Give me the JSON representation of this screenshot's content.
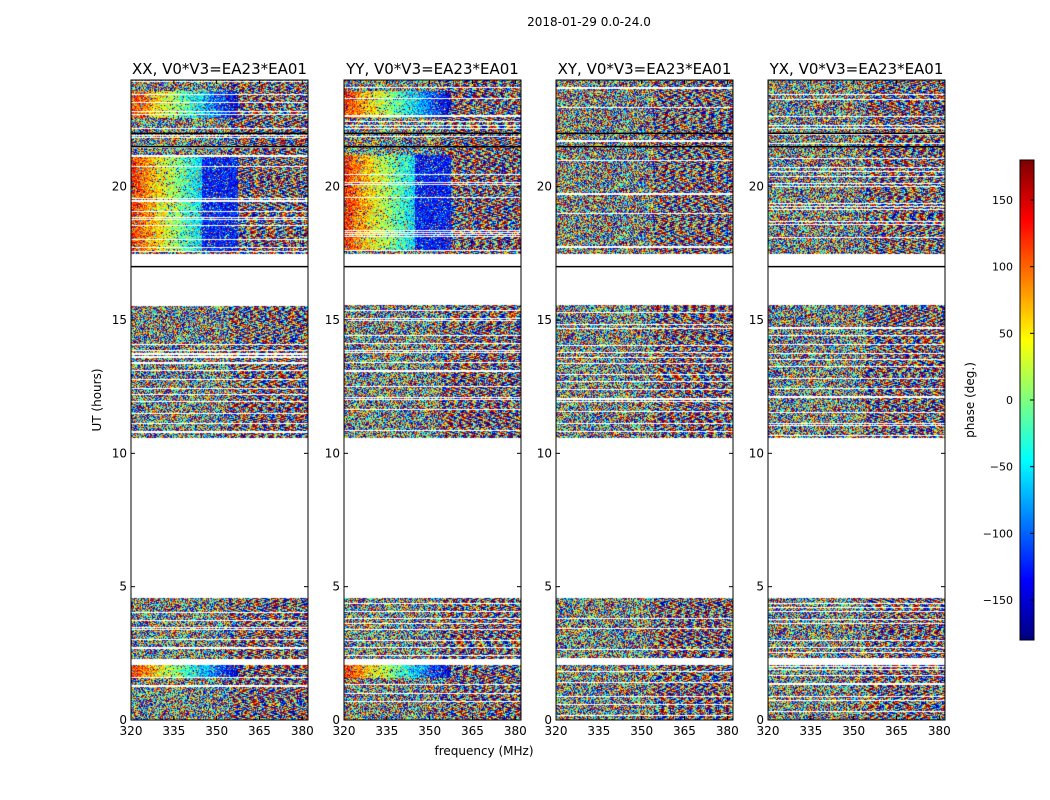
{
  "chart_data": {
    "type": "heatmap",
    "title": "2018-01-29 0.0-24.0",
    "xlabel": "frequency (MHz)",
    "ylabel": "UT (hours)",
    "xlim": [
      320,
      382
    ],
    "ylim": [
      0,
      24
    ],
    "x_ticks": [
      320,
      335,
      350,
      365,
      380
    ],
    "y_ticks": [
      0,
      5,
      10,
      15,
      20
    ],
    "panels": [
      {
        "title": "XX, V0*V3=EA23*EA01",
        "pattern": "parallel"
      },
      {
        "title": "YY, V0*V3=EA23*EA01",
        "pattern": "parallel"
      },
      {
        "title": "XY, V0*V3=EA23*EA01",
        "pattern": "cross"
      },
      {
        "title": "YX, V0*V3=EA23*EA01",
        "pattern": "cross"
      }
    ],
    "colorbar": {
      "label": "phase (deg.)",
      "range": [
        -180,
        180
      ],
      "ticks": [
        -150,
        -100,
        -50,
        0,
        50,
        100,
        150
      ],
      "colormap": "jet"
    },
    "data_time_ranges_hours": [
      [
        0.0,
        2.1
      ],
      [
        2.3,
        4.6
      ],
      [
        10.6,
        15.6
      ],
      [
        17.5,
        24.0
      ]
    ],
    "flagged_time_lines_hours": [
      22.0,
      21.5,
      17.0
    ]
  }
}
